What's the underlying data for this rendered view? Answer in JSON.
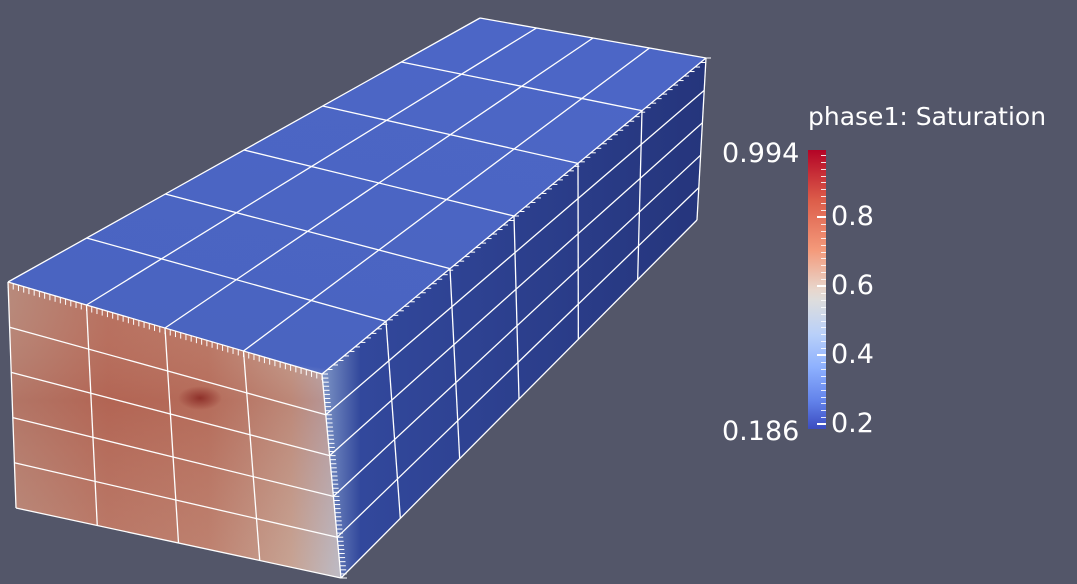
{
  "colorbar": {
    "title": "phase1: Saturation",
    "range_max": "0.994",
    "range_min": "0.186",
    "range_values": [
      0.186,
      0.994
    ],
    "tick_labels": [
      "0.8",
      "0.6",
      "0.4",
      "0.2"
    ],
    "tick_values": [
      0.8,
      0.6,
      0.4,
      0.2
    ],
    "colormap": "cool-to-warm",
    "color_low": "#3b4cc0",
    "color_mid": "#dddddd",
    "color_high": "#b40426"
  },
  "scene": {
    "background_color": "#535669",
    "object": "box",
    "grid_line_color": "#ffffff",
    "front_face_values": "high saturation (~0.7-0.9), reddish",
    "side_top_values": "low saturation (~0.2-0.3), blue"
  }
}
